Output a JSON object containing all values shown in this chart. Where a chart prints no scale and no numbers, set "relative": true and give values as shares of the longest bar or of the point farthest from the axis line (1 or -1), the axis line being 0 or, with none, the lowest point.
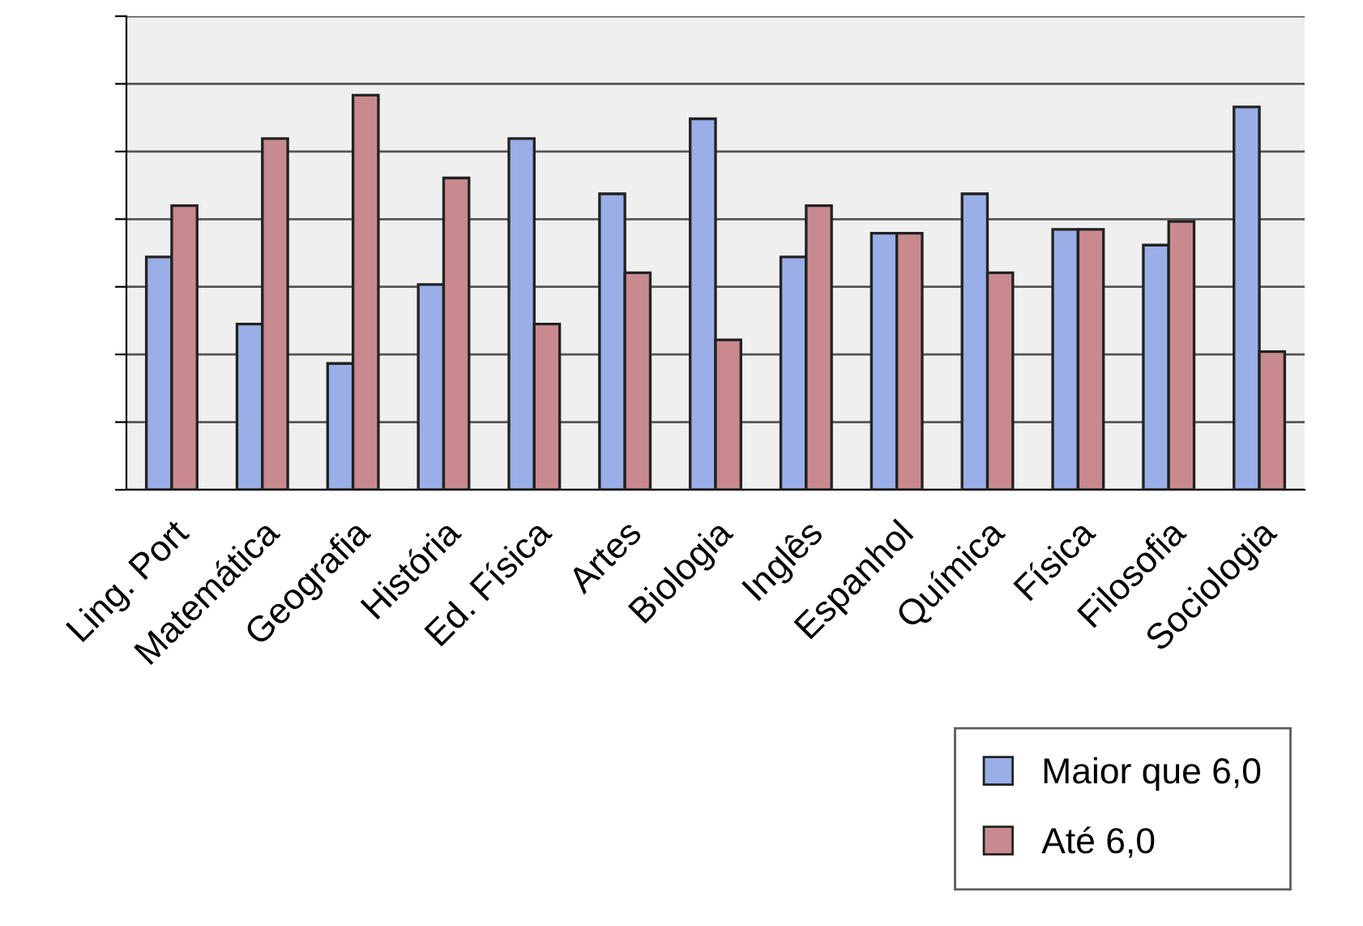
{
  "chart_data": {
    "type": "bar",
    "relative": true,
    "grid": "y",
    "legend": "bottom right",
    "categories": [
      "Ling. Port",
      "Matemática",
      "Geografia",
      "História",
      "Ed. Física",
      "Artes",
      "Biologia",
      "Inglês",
      "Espanhol",
      "Química",
      "Física",
      "Filosofia",
      "Sociologia"
    ],
    "series": [
      {
        "name": "Maior que 6,0",
        "color": "#9aaee8",
        "values": [
          0.59,
          0.42,
          0.32,
          0.52,
          0.89,
          0.75,
          0.94,
          0.59,
          0.65,
          0.75,
          0.66,
          0.62,
          0.97
        ]
      },
      {
        "name": "Até 6,0",
        "color": "#c88a8e",
        "values": [
          0.72,
          0.89,
          1,
          0.79,
          0.42,
          0.55,
          0.38,
          0.72,
          0.65,
          0.55,
          0.66,
          0.68,
          0.35
        ]
      }
    ]
  }
}
